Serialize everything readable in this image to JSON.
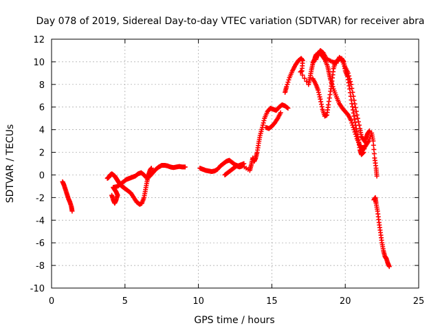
{
  "chart_data": {
    "type": "scatter",
    "title": "Day 078 of 2019, Sidereal Day-to-day VTEC variation (SDTVAR) for receiver abra",
    "xlabel": "GPS time / hours",
    "ylabel": "SDTVAR / TECUs",
    "xlim": [
      0,
      25
    ],
    "ylim": [
      -10,
      12
    ],
    "xticks": [
      "0",
      "5",
      "10",
      "15",
      "20",
      "25"
    ],
    "yticks": [
      "12",
      "10",
      "8",
      "6",
      "4",
      "2",
      "0",
      "-2",
      "-4",
      "-6",
      "-8",
      "-10"
    ],
    "grid": true,
    "marker": "+",
    "color": "#ff0000",
    "series": [
      {
        "name": "",
        "points": [
          [
            0.75,
            -0.6
          ],
          [
            0.85,
            -0.9
          ],
          [
            0.95,
            -1.3
          ],
          [
            1.05,
            -1.7
          ],
          [
            1.15,
            -2.1
          ],
          [
            1.25,
            -2.4
          ],
          [
            1.35,
            -2.8
          ],
          [
            1.4,
            -3.2
          ],
          [
            3.8,
            -0.3
          ],
          [
            3.9,
            -0.2
          ],
          [
            4.0,
            0.0
          ],
          [
            4.1,
            0.1
          ],
          [
            4.2,
            0.0
          ],
          [
            4.3,
            -0.1
          ],
          [
            4.4,
            -0.3
          ],
          [
            4.5,
            -0.5
          ],
          [
            4.6,
            -0.7
          ],
          [
            4.7,
            -0.9
          ],
          [
            4.8,
            -1.0
          ],
          [
            4.9,
            -1.1
          ],
          [
            5.0,
            -1.2
          ],
          [
            5.2,
            -1.4
          ],
          [
            5.4,
            -1.6
          ],
          [
            5.6,
            -2.0
          ],
          [
            5.8,
            -2.4
          ],
          [
            6.0,
            -2.6
          ],
          [
            6.15,
            -2.5
          ],
          [
            6.3,
            -2.0
          ],
          [
            6.4,
            -1.3
          ],
          [
            6.5,
            -0.6
          ],
          [
            6.6,
            0.0
          ],
          [
            6.7,
            0.4
          ],
          [
            6.8,
            0.6
          ],
          [
            4.1,
            -1.8
          ],
          [
            4.2,
            -2.2
          ],
          [
            4.3,
            -2.5
          ],
          [
            4.4,
            -2.2
          ],
          [
            4.5,
            -1.8
          ],
          [
            4.4,
            -1.5
          ],
          [
            4.3,
            -1.3
          ],
          [
            4.2,
            -1.1
          ],
          [
            4.5,
            -1.0
          ],
          [
            4.7,
            -0.8
          ],
          [
            4.9,
            -0.6
          ],
          [
            5.1,
            -0.4
          ],
          [
            5.3,
            -0.3
          ],
          [
            5.5,
            -0.2
          ],
          [
            5.7,
            -0.1
          ],
          [
            5.9,
            0.1
          ],
          [
            6.1,
            0.2
          ],
          [
            6.3,
            0.0
          ],
          [
            6.5,
            -0.3
          ],
          [
            6.7,
            -0.1
          ],
          [
            6.9,
            0.2
          ],
          [
            7.1,
            0.5
          ],
          [
            7.3,
            0.7
          ],
          [
            7.5,
            0.85
          ],
          [
            7.7,
            0.85
          ],
          [
            7.9,
            0.8
          ],
          [
            8.1,
            0.7
          ],
          [
            8.3,
            0.65
          ],
          [
            8.5,
            0.7
          ],
          [
            8.7,
            0.75
          ],
          [
            8.9,
            0.7
          ],
          [
            9.1,
            0.7
          ],
          [
            10.1,
            0.6
          ],
          [
            10.3,
            0.5
          ],
          [
            10.5,
            0.4
          ],
          [
            10.7,
            0.35
          ],
          [
            10.9,
            0.3
          ],
          [
            11.1,
            0.35
          ],
          [
            11.3,
            0.5
          ],
          [
            11.5,
            0.8
          ],
          [
            11.7,
            1.0
          ],
          [
            11.9,
            1.2
          ],
          [
            12.1,
            1.3
          ],
          [
            12.3,
            1.1
          ],
          [
            12.5,
            0.9
          ],
          [
            12.7,
            0.8
          ],
          [
            12.9,
            0.9
          ],
          [
            13.1,
            1.0
          ],
          [
            11.8,
            0.0
          ],
          [
            12.0,
            0.2
          ],
          [
            12.2,
            0.4
          ],
          [
            12.4,
            0.6
          ],
          [
            12.6,
            0.8
          ],
          [
            12.8,
            0.7
          ],
          [
            13.0,
            0.8
          ],
          [
            13.5,
            0.4
          ],
          [
            13.6,
            0.9
          ],
          [
            13.7,
            1.5
          ],
          [
            13.8,
            1.2
          ],
          [
            13.9,
            1.5
          ],
          [
            14.0,
            2.0
          ],
          [
            14.1,
            2.8
          ],
          [
            14.2,
            3.5
          ],
          [
            14.35,
            4.2
          ],
          [
            14.5,
            5.0
          ],
          [
            14.7,
            5.6
          ],
          [
            14.9,
            5.9
          ],
          [
            15.1,
            5.8
          ],
          [
            15.3,
            5.7
          ],
          [
            15.5,
            6.0
          ],
          [
            15.7,
            6.2
          ],
          [
            15.9,
            6.1
          ],
          [
            16.1,
            5.9
          ],
          [
            14.6,
            4.2
          ],
          [
            14.8,
            4.1
          ],
          [
            15.0,
            4.3
          ],
          [
            15.2,
            4.6
          ],
          [
            15.4,
            5.0
          ],
          [
            15.6,
            5.5
          ],
          [
            15.9,
            7.3
          ],
          [
            16.0,
            7.8
          ],
          [
            16.2,
            8.6
          ],
          [
            16.4,
            9.2
          ],
          [
            16.6,
            9.7
          ],
          [
            16.8,
            10.1
          ],
          [
            17.0,
            10.3
          ],
          [
            17.1,
            10.1
          ],
          [
            17.05,
            9.2
          ],
          [
            16.95,
            9.1
          ],
          [
            17.5,
            8.0
          ],
          [
            17.6,
            8.6
          ],
          [
            17.7,
            9.3
          ],
          [
            17.8,
            9.9
          ],
          [
            17.9,
            10.2
          ],
          [
            18.0,
            10.6
          ],
          [
            18.2,
            10.8
          ],
          [
            18.4,
            10.6
          ],
          [
            18.6,
            10.2
          ],
          [
            18.8,
            9.6
          ],
          [
            18.9,
            9.0
          ],
          [
            19.0,
            8.4
          ],
          [
            19.2,
            7.6
          ],
          [
            19.4,
            6.9
          ],
          [
            19.6,
            6.3
          ],
          [
            19.8,
            5.9
          ],
          [
            20.0,
            5.6
          ],
          [
            20.2,
            5.3
          ],
          [
            20.4,
            4.8
          ],
          [
            20.6,
            4.0
          ],
          [
            20.8,
            3.2
          ],
          [
            21.0,
            2.6
          ],
          [
            21.2,
            2.2
          ],
          [
            21.4,
            2.6
          ],
          [
            21.6,
            3.0
          ],
          [
            21.8,
            3.7
          ],
          [
            21.9,
            3.0
          ],
          [
            22.0,
            1.5
          ],
          [
            22.1,
            0.6
          ],
          [
            22.15,
            -0.1
          ],
          [
            17.8,
            8.5
          ],
          [
            18.0,
            8.0
          ],
          [
            18.15,
            7.5
          ],
          [
            18.3,
            6.7
          ],
          [
            18.45,
            5.8
          ],
          [
            18.6,
            5.2
          ],
          [
            18.75,
            5.3
          ],
          [
            18.85,
            6.2
          ],
          [
            19.0,
            7.4
          ],
          [
            19.1,
            8.3
          ],
          [
            19.2,
            9.4
          ],
          [
            19.35,
            10.0
          ],
          [
            19.55,
            10.2
          ],
          [
            19.75,
            10.3
          ],
          [
            19.9,
            10.0
          ],
          [
            20.0,
            9.2
          ],
          [
            20.15,
            8.7
          ],
          [
            20.3,
            7.6
          ],
          [
            20.45,
            6.3
          ],
          [
            20.6,
            5.2
          ],
          [
            20.75,
            4.1
          ],
          [
            20.9,
            3.1
          ],
          [
            21.0,
            2.2
          ],
          [
            21.1,
            1.8
          ],
          [
            21.25,
            2.0
          ],
          [
            21.4,
            3.2
          ],
          [
            21.5,
            3.6
          ],
          [
            21.65,
            3.9
          ],
          [
            18.0,
            10.2
          ],
          [
            18.1,
            10.6
          ],
          [
            18.3,
            11.0
          ],
          [
            18.5,
            10.8
          ],
          [
            18.7,
            10.3
          ],
          [
            19.1,
            10.0
          ],
          [
            19.4,
            9.9
          ],
          [
            19.6,
            10.4
          ],
          [
            19.8,
            10.1
          ],
          [
            20.0,
            9.5
          ],
          [
            20.2,
            9.0
          ],
          [
            20.4,
            8.0
          ],
          [
            20.6,
            6.6
          ],
          [
            20.8,
            5.3
          ],
          [
            21.0,
            4.1
          ],
          [
            21.1,
            3.4
          ],
          [
            21.3,
            3.0
          ],
          [
            21.5,
            3.5
          ],
          [
            21.95,
            -2.2
          ],
          [
            22.05,
            -2.0
          ],
          [
            22.1,
            -2.5
          ],
          [
            22.2,
            -3.2
          ],
          [
            22.3,
            -4.2
          ],
          [
            22.4,
            -5.1
          ],
          [
            22.5,
            -6.0
          ],
          [
            22.6,
            -6.7
          ],
          [
            22.7,
            -7.2
          ],
          [
            22.8,
            -7.4
          ],
          [
            22.9,
            -7.8
          ],
          [
            23.0,
            -8.1
          ]
        ]
      }
    ]
  }
}
